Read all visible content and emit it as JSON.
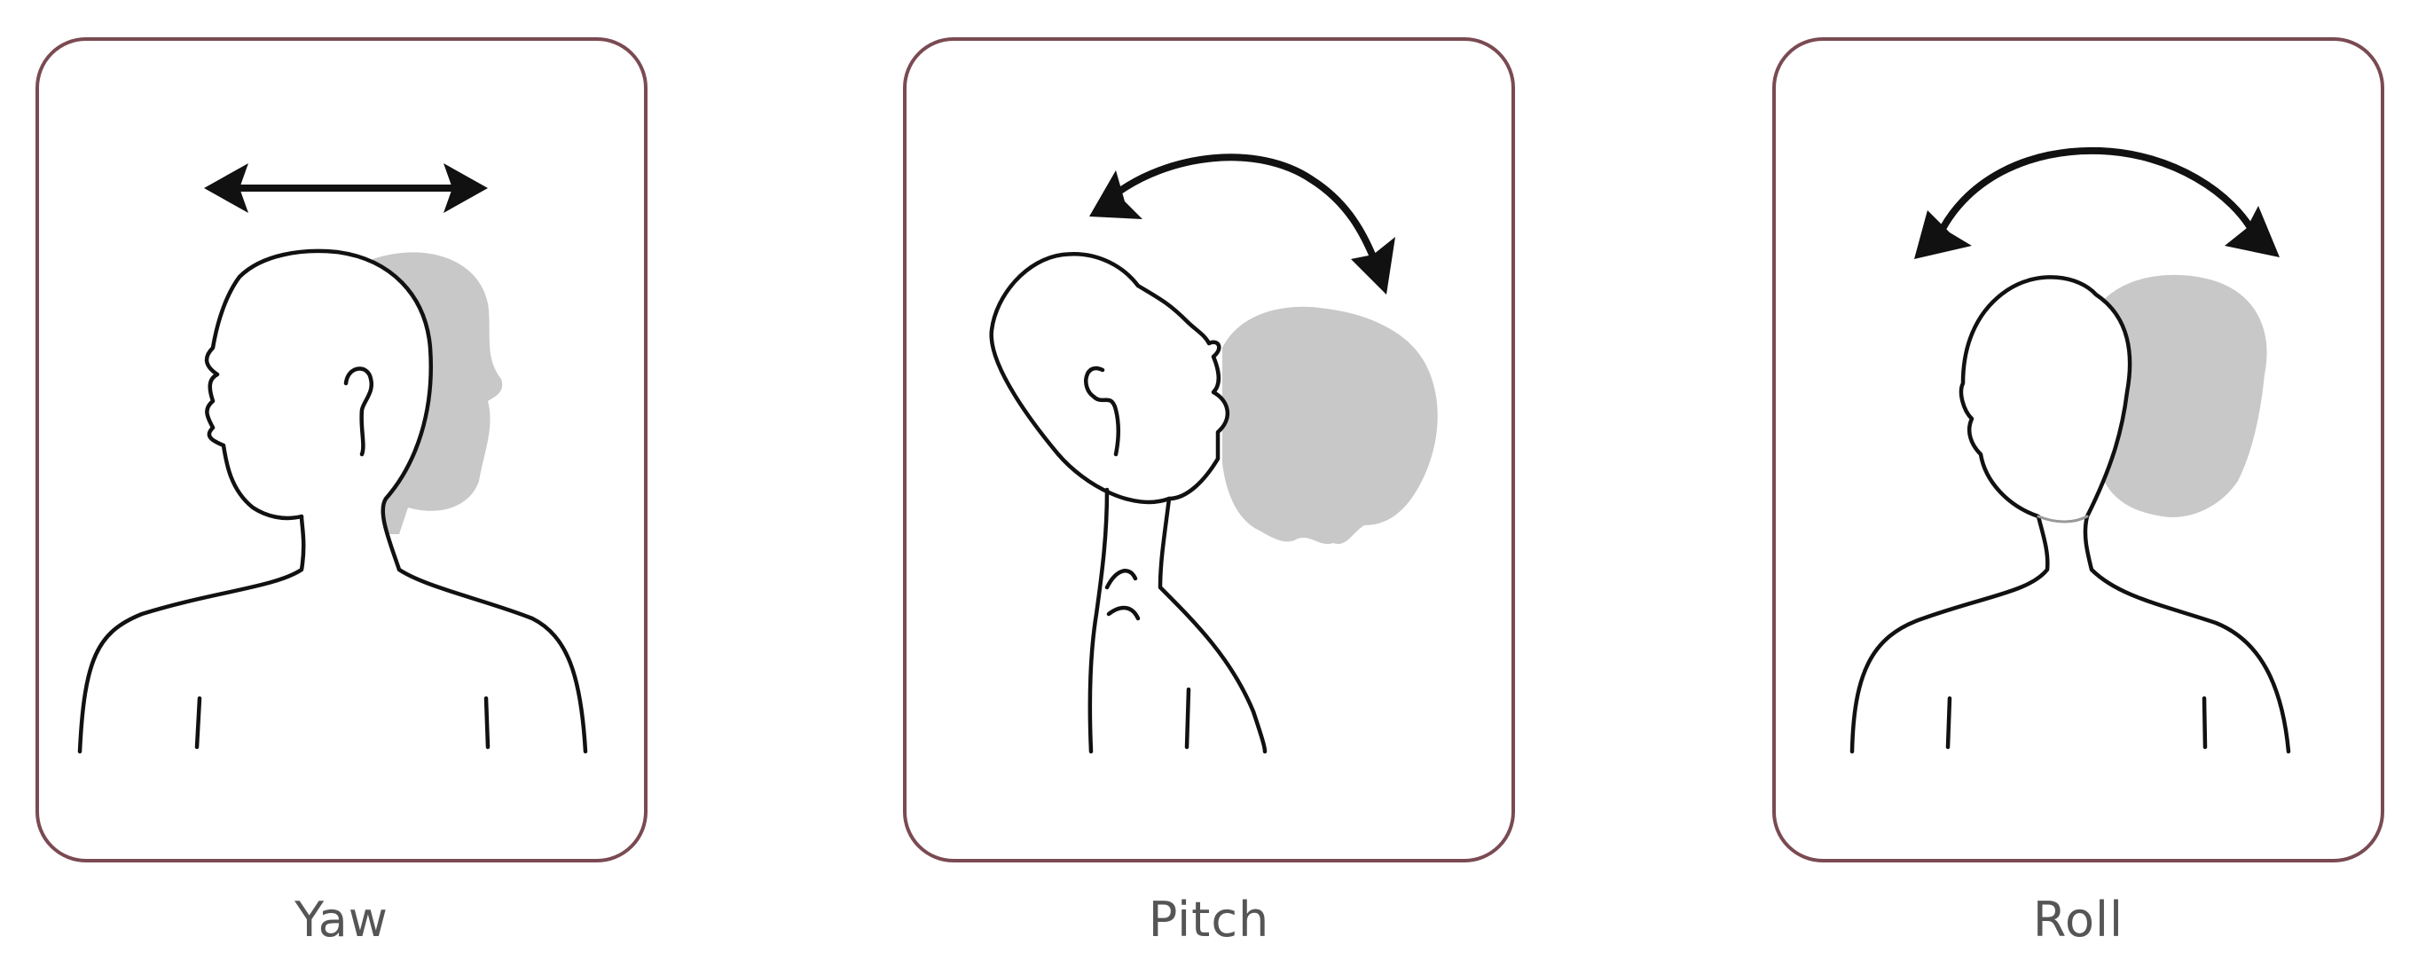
{
  "panels": [
    {
      "id": "yaw",
      "label": "Yaw"
    },
    {
      "id": "pitch",
      "label": "Pitch"
    },
    {
      "id": "roll",
      "label": "Roll"
    }
  ],
  "colors": {
    "frame": "#7a4a52",
    "outline": "#111111",
    "ghost": "#c8c8c8",
    "caption": "#555555"
  },
  "icons": [
    "double-headed-straight-arrow-icon",
    "double-headed-curved-arrow-icon"
  ]
}
